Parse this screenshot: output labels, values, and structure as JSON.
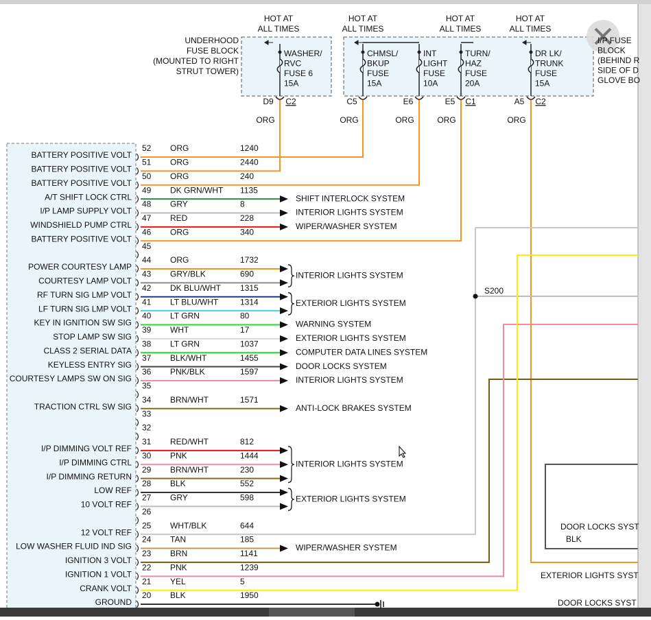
{
  "top": {
    "hot_labels": [
      [
        "HOT AT",
        "ALL TIMES"
      ],
      [
        "HOT AT",
        "ALL TIMES"
      ],
      [
        "HOT AT",
        "ALL TIMES"
      ],
      [
        "HOT AT",
        "ALL TIMES"
      ]
    ],
    "underhood": [
      "UNDERHOOD",
      "FUSE BLOCK",
      "(MOUNTED TO RIGHT",
      "STRUT TOWER)"
    ],
    "ip_block": [
      "I/P FUSE",
      "BLOCK",
      "(BEHIND R",
      "SIDE OF D",
      "GLOVE BO"
    ],
    "fuses": [
      [
        "WASHER/",
        "RVC",
        "FUSE 6",
        "15A"
      ],
      [
        "CHMSL/",
        "BKUP",
        "FUSE",
        "15A"
      ],
      [
        "INT",
        "LIGHT",
        "FUSE",
        "10A"
      ],
      [
        "TURN/",
        "HAZ",
        "FUSE",
        "20A"
      ],
      [
        "DR LK/",
        "TRUNK",
        "FUSE",
        "15A"
      ]
    ],
    "connectors": [
      "D9",
      "C2",
      "C5",
      "E6",
      "E5",
      "C1",
      "A5",
      "C2"
    ],
    "wire_colors": [
      "ORG",
      "ORG",
      "ORG",
      "ORG",
      "ORG"
    ]
  },
  "rows": [
    {
      "pin": "52",
      "label": "BATTERY POSITIVE VOLT",
      "color": "ORG",
      "circuit": "1240",
      "dest": null
    },
    {
      "pin": "51",
      "label": "BATTERY POSITIVE VOLT",
      "color": "ORG",
      "circuit": "2440",
      "dest": null
    },
    {
      "pin": "50",
      "label": "BATTERY POSITIVE VOLT",
      "color": "ORG",
      "circuit": "240",
      "dest": null
    },
    {
      "pin": "49",
      "label": "A/T SHIFT LOCK CTRL",
      "color": "DK GRN/WHT",
      "circuit": "1135",
      "dest": "SHIFT INTERLOCK SYSTEM"
    },
    {
      "pin": "48",
      "label": "I/P LAMP SUPPLY VOLT",
      "color": "GRY",
      "circuit": "8",
      "dest": "INTERIOR LIGHTS SYSTEM"
    },
    {
      "pin": "47",
      "label": "WINDSHIELD PUMP CTRL",
      "color": "RED",
      "circuit": "228",
      "dest": "WIPER/WASHER SYSTEM"
    },
    {
      "pin": "46",
      "label": "BATTERY POSITIVE VOLT",
      "color": "ORG",
      "circuit": "340",
      "dest": null
    },
    {
      "pin": "45",
      "label": null,
      "color": null,
      "circuit": null,
      "dest": null
    },
    {
      "pin": "44",
      "label": "POWER COURTESY LAMP",
      "color": "ORG",
      "circuit": "1732",
      "dest": null
    },
    {
      "pin": "43",
      "label": "COURTESY LAMP VOLT",
      "color": "GRY/BLK",
      "circuit": "690",
      "dest": null
    },
    {
      "pin": "42",
      "label": "RF TURN SIG LMP VOLT",
      "color": "DK BLU/WHT",
      "circuit": "1315",
      "dest": null
    },
    {
      "pin": "41",
      "label": "LF TURN SIG LMP VOLT",
      "color": "LT BLU/WHT",
      "circuit": "1314",
      "dest": null
    },
    {
      "pin": "40",
      "label": "KEY IN IGNITION SW SIG",
      "color": "LT GRN",
      "circuit": "80",
      "dest": "WARNING SYSTEM"
    },
    {
      "pin": "39",
      "label": "STOP LAMP SW SIG",
      "color": "WHT",
      "circuit": "17",
      "dest": "EXTERIOR LIGHTS SYSTEM"
    },
    {
      "pin": "38",
      "label": "CLASS 2 SERIAL DATA",
      "color": "LT GRN",
      "circuit": "1037",
      "dest": "COMPUTER DATA LINES SYSTEM"
    },
    {
      "pin": "37",
      "label": "KEYLESS ENTRY SIG",
      "color": "BLK/WHT",
      "circuit": "1455",
      "dest": "DOOR LOCKS SYSTEM"
    },
    {
      "pin": "36",
      "label": "COURTESY LAMPS SW ON SIG",
      "color": "PNK/BLK",
      "circuit": "1597",
      "dest": "INTERIOR LIGHTS SYSTEM"
    },
    {
      "pin": "35",
      "label": null,
      "color": null,
      "circuit": null,
      "dest": null
    },
    {
      "pin": "34",
      "label": "TRACTION CTRL SW SIG",
      "color": "BRN/WHT",
      "circuit": "1571",
      "dest": "ANTI-LOCK BRAKES SYSTEM"
    },
    {
      "pin": "33",
      "label": null,
      "color": null,
      "circuit": null,
      "dest": null
    },
    {
      "pin": "32",
      "label": null,
      "color": null,
      "circuit": null,
      "dest": null
    },
    {
      "pin": "31",
      "label": "I/P DIMMING VOLT REF",
      "color": "RED/WHT",
      "circuit": "812",
      "dest": null
    },
    {
      "pin": "30",
      "label": "I/P DIMMING CTRL",
      "color": "PNK",
      "circuit": "1444",
      "dest": null
    },
    {
      "pin": "29",
      "label": "I/P DIMMING RETURN",
      "color": "BRN/WHT",
      "circuit": "230",
      "dest": null
    },
    {
      "pin": "28",
      "label": "LOW REF",
      "color": "BLK",
      "circuit": "552",
      "dest": null
    },
    {
      "pin": "27",
      "label": "10 VOLT REF",
      "color": "GRY",
      "circuit": "598",
      "dest": null
    },
    {
      "pin": "26",
      "label": null,
      "color": null,
      "circuit": null,
      "dest": null
    },
    {
      "pin": "25",
      "label": "12 VOLT REF",
      "color": "WHT/BLK",
      "circuit": "644",
      "dest": null
    },
    {
      "pin": "24",
      "label": "LOW WASHER FLUID IND SIG",
      "color": "TAN",
      "circuit": "185",
      "dest": "WIPER/WASHER SYSTEM"
    },
    {
      "pin": "23",
      "label": "IGNITION 3 VOLT",
      "color": "BRN",
      "circuit": "1141",
      "dest": null
    },
    {
      "pin": "22",
      "label": "IGNITION 1 VOLT",
      "color": "PNK",
      "circuit": "1239",
      "dest": null
    },
    {
      "pin": "21",
      "label": "CRANK VOLT",
      "color": "YEL",
      "circuit": "5",
      "dest": null
    },
    {
      "pin": "20",
      "label": "GROUND",
      "color": "BLK",
      "circuit": "1950",
      "dest": null
    }
  ],
  "group_labels": [
    "INTERIOR LIGHTS SYSTEM",
    "EXTERIOR LIGHTS SYSTEM",
    "INTERIOR LIGHTS SYSTEM",
    "EXTERIOR LIGHTS SYSTEM"
  ],
  "splice": "S200",
  "right": {
    "box": [
      "DOOR LOCKS SYST",
      "BLK"
    ],
    "exterior": "EXTERIOR LIGHTS SYST",
    "door": "DOOR LOCKS SYST"
  }
}
